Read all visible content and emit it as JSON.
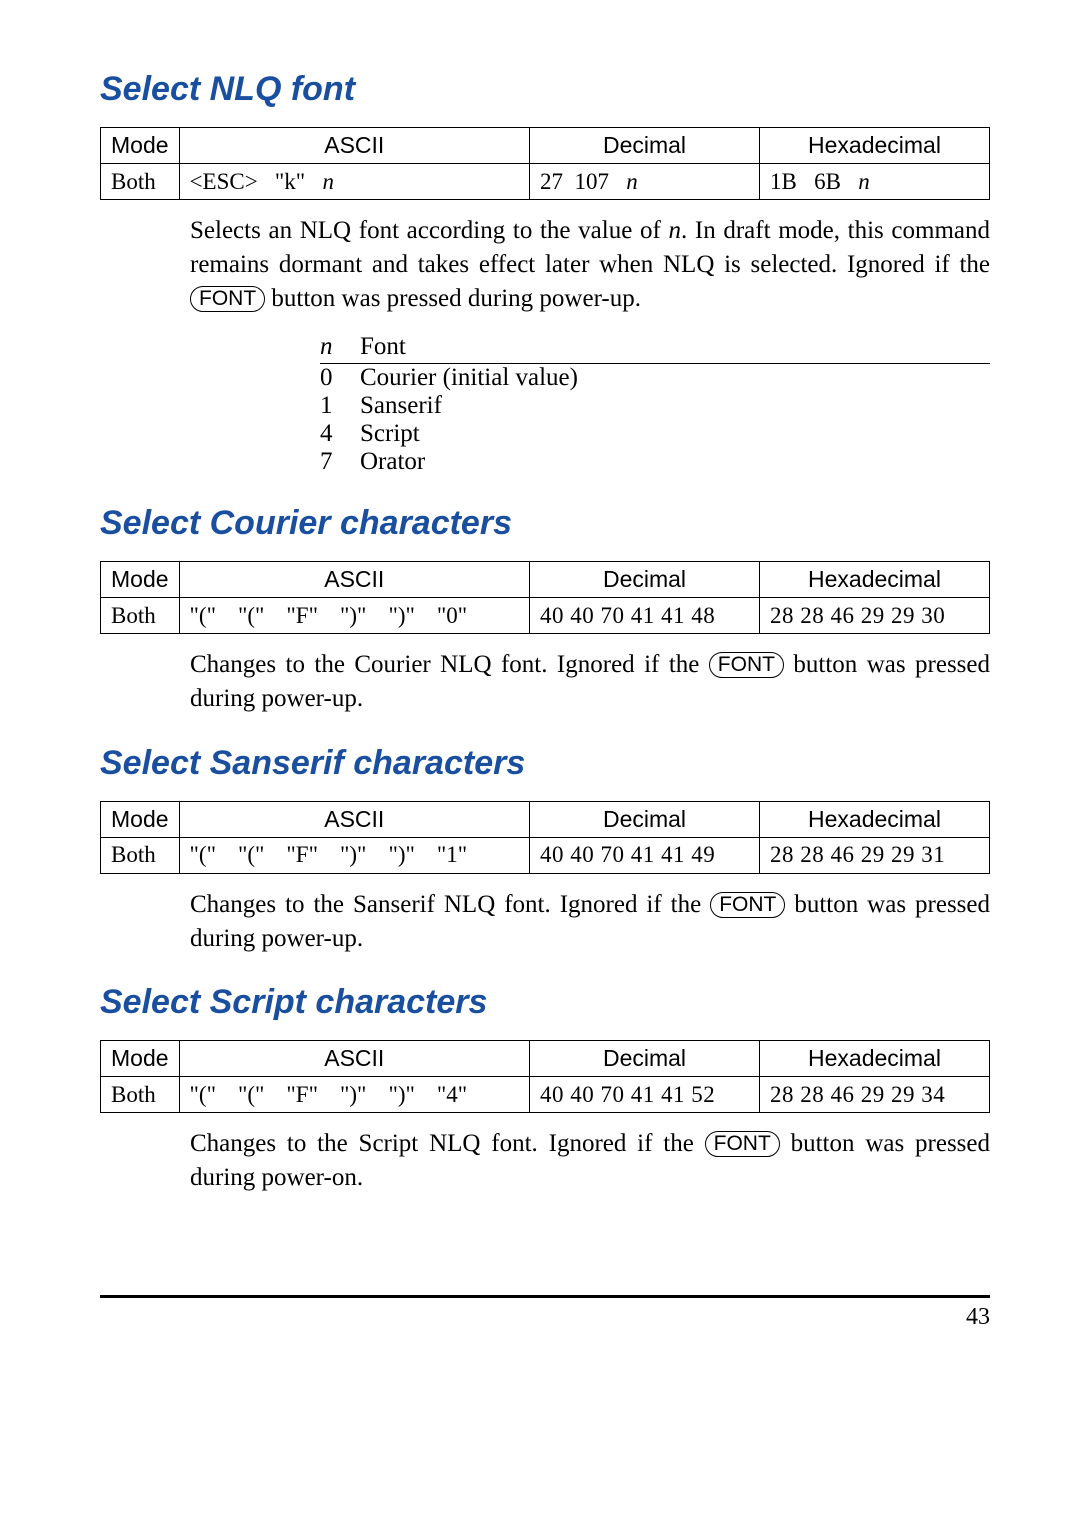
{
  "page_number": "43",
  "sections": [
    {
      "title": "Select NLQ font",
      "table": {
        "headers": [
          "Mode",
          "ASCII",
          "Decimal",
          "Hexadecimal"
        ],
        "mode": "Both",
        "ascii": "<ESC>   \"k\"   n",
        "ascii_italic_n": true,
        "decimal": "27  107   n",
        "hex": "1B   6B   n"
      },
      "desc_parts": [
        "Selects an NLQ font according to the value of ",
        ". In draft mode, this command remains dormant and takes effect later when NLQ is selected. Ignored if the ",
        " button was pressed during power-up."
      ],
      "desc_italic": "n",
      "font_button": "FONT",
      "nfont": {
        "header_n": "n",
        "header_font": "Font",
        "rows": [
          [
            "0",
            "Courier (initial value)"
          ],
          [
            "1",
            "Sanserif"
          ],
          [
            "4",
            "Script"
          ],
          [
            "7",
            "Orator"
          ]
        ]
      }
    },
    {
      "title": "Select Courier characters",
      "table": {
        "headers": [
          "Mode",
          "ASCII",
          "Decimal",
          "Hexadecimal"
        ],
        "mode": "Both",
        "ascii_tokens": [
          "\"(\"",
          "\"(\"",
          "\"F\"",
          "\")\"",
          "\")\"",
          "\"0\""
        ],
        "decimal": "40  40  70  41  41  48",
        "hex": "28  28  46  29  29  30"
      },
      "desc_parts": [
        "Changes to the Courier NLQ font. Ignored if the ",
        " button was pressed during power-up."
      ],
      "font_button": "FONT"
    },
    {
      "title": "Select Sanserif characters",
      "table": {
        "headers": [
          "Mode",
          "ASCII",
          "Decimal",
          "Hexadecimal"
        ],
        "mode": "Both",
        "ascii_tokens": [
          "\"(\"",
          "\"(\"",
          "\"F\"",
          "\")\"",
          "\")\"",
          "\"1\""
        ],
        "decimal": "40  40  70  41  41  49",
        "hex": "28  28  46  29  29  31"
      },
      "desc_parts": [
        "Changes to the Sanserif NLQ font. Ignored if the ",
        " button was pressed during power-up."
      ],
      "font_button": "FONT"
    },
    {
      "title": "Select Script characters",
      "table": {
        "headers": [
          "Mode",
          "ASCII",
          "Decimal",
          "Hexadecimal"
        ],
        "mode": "Both",
        "ascii_tokens": [
          "\"(\"",
          "\"(\"",
          "\"F\"",
          "\")\"",
          "\")\"",
          "\"4\""
        ],
        "decimal": "40  40  70  41  41  52",
        "hex": "28  28  46  29  29  34"
      },
      "desc_parts": [
        "Changes to the Script NLQ font. Ignored if the ",
        " button was pressed during power-on."
      ],
      "font_button": "FONT"
    }
  ]
}
